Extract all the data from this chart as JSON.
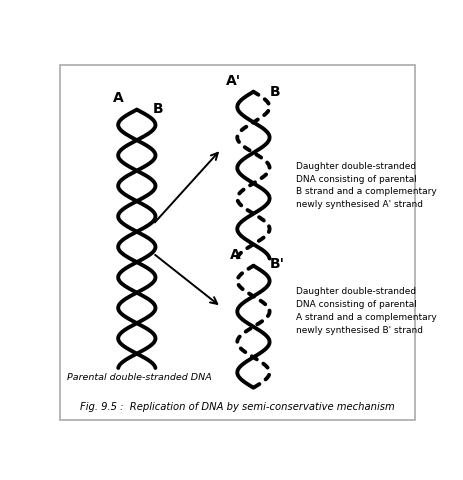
{
  "title": "Fig. 9.5 :  Replication of DNA by semi-conservative mechanism",
  "background_color": "#ffffff",
  "border_color": "#aaaaaa",
  "parental_label_A": "A",
  "parental_label_B": "B",
  "daughter1_label_A": "A'",
  "daughter1_label_B": "B",
  "daughter2_label_A": "A",
  "daughter2_label_B": "B'",
  "parental_text": "Parental double-stranded DNA",
  "daughter1_text": "Daughter double-stranded\nDNA consisting of parental\nB strand and a complementary\nnewly synthesised A' strand",
  "daughter2_text": "Daughter double-stranded\nDNA consisting of parental\nA strand and a complementary\nnewly synthesised B' strand"
}
